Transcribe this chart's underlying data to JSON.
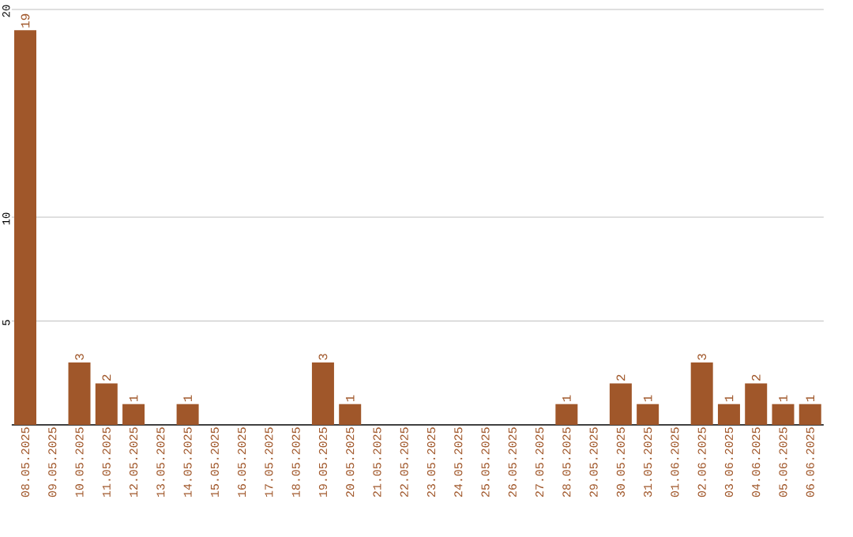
{
  "chart_data": {
    "type": "bar",
    "categories": [
      "08.05.2025",
      "09.05.2025",
      "10.05.2025",
      "11.05.2025",
      "12.05.2025",
      "13.05.2025",
      "14.05.2025",
      "15.05.2025",
      "16.05.2025",
      "17.05.2025",
      "18.05.2025",
      "19.05.2025",
      "20.05.2025",
      "21.05.2025",
      "22.05.2025",
      "23.05.2025",
      "24.05.2025",
      "25.05.2025",
      "26.05.2025",
      "27.05.2025",
      "28.05.2025",
      "29.05.2025",
      "30.05.2025",
      "31.05.2025",
      "01.06.2025",
      "02.06.2025",
      "03.06.2025",
      "04.06.2025",
      "05.06.2025",
      "06.06.2025"
    ],
    "values": [
      19,
      0,
      3,
      2,
      1,
      0,
      1,
      0,
      0,
      0,
      0,
      3,
      1,
      0,
      0,
      0,
      0,
      0,
      0,
      0,
      1,
      0,
      2,
      1,
      0,
      3,
      1,
      2,
      1,
      1
    ],
    "value_labels": [
      "19",
      null,
      "3",
      "2",
      "1",
      null,
      "1",
      null,
      null,
      null,
      null,
      "3",
      "1",
      null,
      null,
      null,
      null,
      null,
      null,
      null,
      "1",
      null,
      "2",
      "1",
      null,
      "3",
      "1",
      "2",
      "1",
      "1"
    ],
    "color": "#a0572a",
    "ylim": [
      0,
      20
    ],
    "yticks": [
      5,
      10,
      20
    ],
    "grid": "y"
  }
}
